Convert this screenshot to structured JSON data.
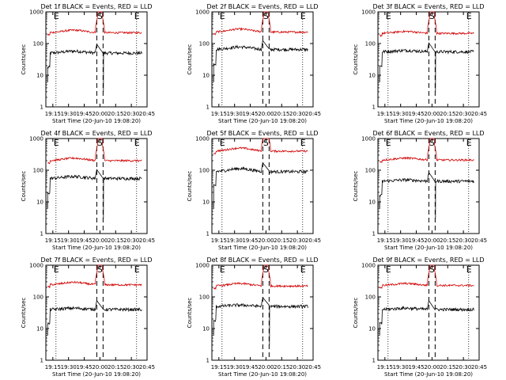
{
  "figure": {
    "ylabel": "Counts/sec",
    "xlabel": "Start Time (20-Jun-10 19:08:20)",
    "x_ticks": [
      "19:15",
      "19:30",
      "19:45",
      "20:00",
      "20:15",
      "20:30",
      "20:45"
    ],
    "y_ticks": [
      "1",
      "10",
      "100",
      "1000"
    ],
    "markers": {
      "s": "S",
      "e": "E"
    },
    "colors": {
      "events": "#000000",
      "lld": "#d00000",
      "axes": "#000000"
    }
  },
  "chart_data": [
    {
      "type": "line",
      "title": "Det 1f BLACK = Events, RED = LLD",
      "xlim": [
        "19:08:20",
        "20:45:00"
      ],
      "ylim": [
        1,
        1000
      ],
      "log_y": true,
      "series": [
        {
          "name": "Events",
          "color": "#000000",
          "level": 50,
          "hump": 0.15,
          "dip": true
        },
        {
          "name": "LLD",
          "color": "#d00000",
          "level": 220,
          "hump": 0.2
        }
      ],
      "vlines": {
        "dotted": [
          "19:18",
          "20:35"
        ],
        "dashed": [
          "19:57",
          "20:03"
        ]
      }
    },
    {
      "type": "line",
      "title": "Det 2f BLACK = Events, RED = LLD",
      "xlim": [
        "19:08:20",
        "20:45:00"
      ],
      "ylim": [
        1,
        1000
      ],
      "log_y": true,
      "series": [
        {
          "name": "Events",
          "color": "#000000",
          "level": 65,
          "hump": 0.2,
          "dip": false
        },
        {
          "name": "LLD",
          "color": "#d00000",
          "level": 230,
          "hump": 0.25
        }
      ],
      "vlines": {
        "dotted": [
          "19:18",
          "20:35"
        ],
        "dashed": [
          "19:57",
          "20:03"
        ]
      }
    },
    {
      "type": "line",
      "title": "Det 3f BLACK = Events, RED = LLD",
      "xlim": [
        "19:08:20",
        "20:45:00"
      ],
      "ylim": [
        1,
        1000
      ],
      "log_y": true,
      "series": [
        {
          "name": "Events",
          "color": "#000000",
          "level": 55,
          "hump": 0.1,
          "dip": true
        },
        {
          "name": "LLD",
          "color": "#d00000",
          "level": 210,
          "hump": 0.15
        }
      ],
      "vlines": {
        "dotted": [
          "19:18",
          "20:35"
        ],
        "dashed": [
          "19:57",
          "20:03"
        ]
      }
    },
    {
      "type": "line",
      "title": "Det 4f BLACK = Events, RED = LLD",
      "xlim": [
        "19:08:20",
        "20:45:00"
      ],
      "ylim": [
        1,
        1000
      ],
      "log_y": true,
      "series": [
        {
          "name": "Events",
          "color": "#000000",
          "level": 55,
          "hump": 0.15,
          "dip": true
        },
        {
          "name": "LLD",
          "color": "#d00000",
          "level": 200,
          "hump": 0.2
        }
      ],
      "vlines": {
        "dotted": [
          "19:18",
          "20:35"
        ],
        "dashed": [
          "19:57",
          "20:03"
        ]
      }
    },
    {
      "type": "line",
      "title": "Det 5f BLACK = Events, RED = LLD",
      "xlim": [
        "19:08:20",
        "20:45:00"
      ],
      "ylim": [
        1,
        1000
      ],
      "log_y": true,
      "series": [
        {
          "name": "Events",
          "color": "#000000",
          "level": 90,
          "hump": 0.25,
          "dip": false
        },
        {
          "name": "LLD",
          "color": "#d00000",
          "level": 400,
          "hump": 0.25
        }
      ],
      "vlines": {
        "dotted": [
          "19:18",
          "20:35"
        ],
        "dashed": [
          "19:57",
          "20:03"
        ]
      }
    },
    {
      "type": "line",
      "title": "Det 6f BLACK = Events, RED = LLD",
      "xlim": [
        "19:08:20",
        "20:45:00"
      ],
      "ylim": [
        1,
        1000
      ],
      "log_y": true,
      "series": [
        {
          "name": "Events",
          "color": "#000000",
          "level": 45,
          "hump": 0.1,
          "dip": true
        },
        {
          "name": "LLD",
          "color": "#d00000",
          "level": 210,
          "hump": 0.15
        }
      ],
      "vlines": {
        "dotted": [
          "19:18",
          "20:35"
        ],
        "dashed": [
          "19:57",
          "20:03"
        ]
      }
    },
    {
      "type": "line",
      "title": "Det 7f BLACK = Events, RED = LLD",
      "xlim": [
        "19:08:20",
        "20:45:00"
      ],
      "ylim": [
        1,
        1000
      ],
      "log_y": true,
      "series": [
        {
          "name": "Events",
          "color": "#000000",
          "level": 40,
          "hump": 0.1,
          "dip": false
        },
        {
          "name": "LLD",
          "color": "#d00000",
          "level": 240,
          "hump": 0.2
        }
      ],
      "vlines": {
        "dotted": [
          "19:18",
          "20:35"
        ],
        "dashed": [
          "19:57",
          "20:03"
        ]
      }
    },
    {
      "type": "line",
      "title": "Det 8f BLACK = Events, RED = LLD",
      "xlim": [
        "19:08:20",
        "20:45:00"
      ],
      "ylim": [
        1,
        1000
      ],
      "log_y": true,
      "series": [
        {
          "name": "Events",
          "color": "#000000",
          "level": 50,
          "hump": 0.1,
          "dip": true
        },
        {
          "name": "LLD",
          "color": "#d00000",
          "level": 220,
          "hump": 0.2
        }
      ],
      "vlines": {
        "dotted": [
          "19:18",
          "20:35"
        ],
        "dashed": [
          "19:57",
          "20:03"
        ]
      }
    },
    {
      "type": "line",
      "title": "Det 9f BLACK = Events, RED = LLD",
      "xlim": [
        "19:08:20",
        "20:45:00"
      ],
      "ylim": [
        1,
        1000
      ],
      "log_y": true,
      "series": [
        {
          "name": "Events",
          "color": "#000000",
          "level": 40,
          "hump": 0.1,
          "dip": false
        },
        {
          "name": "LLD",
          "color": "#d00000",
          "level": 230,
          "hump": 0.15
        }
      ],
      "vlines": {
        "dotted": [
          "19:18",
          "20:35"
        ],
        "dashed": [
          "19:57",
          "20:03"
        ]
      }
    }
  ]
}
